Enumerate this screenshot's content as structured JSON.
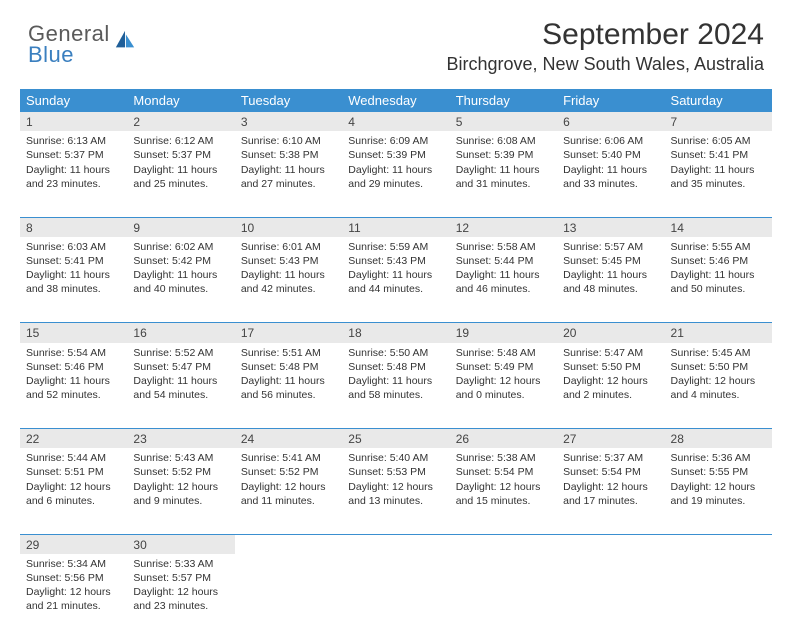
{
  "logo": {
    "top": "General",
    "bottom": "Blue"
  },
  "title": "September 2024",
  "location": "Birchgrove, New South Wales, Australia",
  "colors": {
    "header_bg": "#3a8fd0",
    "header_fg": "#ffffff",
    "rule": "#3a8fd0",
    "daynum_bg": "#e9e9e9",
    "logo_gray": "#5a5a5a",
    "logo_blue": "#3a7fbf"
  },
  "weekdays": [
    "Sunday",
    "Monday",
    "Tuesday",
    "Wednesday",
    "Thursday",
    "Friday",
    "Saturday"
  ],
  "weeks": [
    [
      {
        "n": "1",
        "sr": "6:13 AM",
        "ss": "5:37 PM",
        "dl": "11 hours and 23 minutes."
      },
      {
        "n": "2",
        "sr": "6:12 AM",
        "ss": "5:37 PM",
        "dl": "11 hours and 25 minutes."
      },
      {
        "n": "3",
        "sr": "6:10 AM",
        "ss": "5:38 PM",
        "dl": "11 hours and 27 minutes."
      },
      {
        "n": "4",
        "sr": "6:09 AM",
        "ss": "5:39 PM",
        "dl": "11 hours and 29 minutes."
      },
      {
        "n": "5",
        "sr": "6:08 AM",
        "ss": "5:39 PM",
        "dl": "11 hours and 31 minutes."
      },
      {
        "n": "6",
        "sr": "6:06 AM",
        "ss": "5:40 PM",
        "dl": "11 hours and 33 minutes."
      },
      {
        "n": "7",
        "sr": "6:05 AM",
        "ss": "5:41 PM",
        "dl": "11 hours and 35 minutes."
      }
    ],
    [
      {
        "n": "8",
        "sr": "6:03 AM",
        "ss": "5:41 PM",
        "dl": "11 hours and 38 minutes."
      },
      {
        "n": "9",
        "sr": "6:02 AM",
        "ss": "5:42 PM",
        "dl": "11 hours and 40 minutes."
      },
      {
        "n": "10",
        "sr": "6:01 AM",
        "ss": "5:43 PM",
        "dl": "11 hours and 42 minutes."
      },
      {
        "n": "11",
        "sr": "5:59 AM",
        "ss": "5:43 PM",
        "dl": "11 hours and 44 minutes."
      },
      {
        "n": "12",
        "sr": "5:58 AM",
        "ss": "5:44 PM",
        "dl": "11 hours and 46 minutes."
      },
      {
        "n": "13",
        "sr": "5:57 AM",
        "ss": "5:45 PM",
        "dl": "11 hours and 48 minutes."
      },
      {
        "n": "14",
        "sr": "5:55 AM",
        "ss": "5:46 PM",
        "dl": "11 hours and 50 minutes."
      }
    ],
    [
      {
        "n": "15",
        "sr": "5:54 AM",
        "ss": "5:46 PM",
        "dl": "11 hours and 52 minutes."
      },
      {
        "n": "16",
        "sr": "5:52 AM",
        "ss": "5:47 PM",
        "dl": "11 hours and 54 minutes."
      },
      {
        "n": "17",
        "sr": "5:51 AM",
        "ss": "5:48 PM",
        "dl": "11 hours and 56 minutes."
      },
      {
        "n": "18",
        "sr": "5:50 AM",
        "ss": "5:48 PM",
        "dl": "11 hours and 58 minutes."
      },
      {
        "n": "19",
        "sr": "5:48 AM",
        "ss": "5:49 PM",
        "dl": "12 hours and 0 minutes."
      },
      {
        "n": "20",
        "sr": "5:47 AM",
        "ss": "5:50 PM",
        "dl": "12 hours and 2 minutes."
      },
      {
        "n": "21",
        "sr": "5:45 AM",
        "ss": "5:50 PM",
        "dl": "12 hours and 4 minutes."
      }
    ],
    [
      {
        "n": "22",
        "sr": "5:44 AM",
        "ss": "5:51 PM",
        "dl": "12 hours and 6 minutes."
      },
      {
        "n": "23",
        "sr": "5:43 AM",
        "ss": "5:52 PM",
        "dl": "12 hours and 9 minutes."
      },
      {
        "n": "24",
        "sr": "5:41 AM",
        "ss": "5:52 PM",
        "dl": "12 hours and 11 minutes."
      },
      {
        "n": "25",
        "sr": "5:40 AM",
        "ss": "5:53 PM",
        "dl": "12 hours and 13 minutes."
      },
      {
        "n": "26",
        "sr": "5:38 AM",
        "ss": "5:54 PM",
        "dl": "12 hours and 15 minutes."
      },
      {
        "n": "27",
        "sr": "5:37 AM",
        "ss": "5:54 PM",
        "dl": "12 hours and 17 minutes."
      },
      {
        "n": "28",
        "sr": "5:36 AM",
        "ss": "5:55 PM",
        "dl": "12 hours and 19 minutes."
      }
    ],
    [
      {
        "n": "29",
        "sr": "5:34 AM",
        "ss": "5:56 PM",
        "dl": "12 hours and 21 minutes."
      },
      {
        "n": "30",
        "sr": "5:33 AM",
        "ss": "5:57 PM",
        "dl": "12 hours and 23 minutes."
      },
      null,
      null,
      null,
      null,
      null
    ]
  ],
  "labels": {
    "sunrise": "Sunrise:",
    "sunset": "Sunset:",
    "daylight": "Daylight:"
  }
}
